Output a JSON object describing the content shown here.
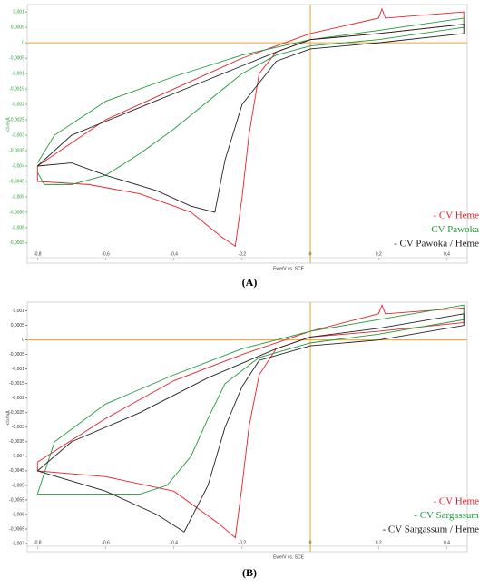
{
  "chart_data": [
    {
      "type": "line",
      "label": "(A)",
      "x_label": "Ewe/V vs. SCE",
      "y_label": "<I>/mA",
      "axis_color": "#2a9a3a",
      "zero_line_color": "#f0a030",
      "xlim": [
        -0.83,
        0.46
      ],
      "ylim": [
        -0.00715,
        0.00124
      ],
      "xticks": [
        {
          "value": -0.8,
          "label": "-0,8"
        },
        {
          "value": -0.6,
          "label": "-0,6"
        },
        {
          "value": -0.4,
          "label": "-0,4"
        },
        {
          "value": -0.2,
          "label": "-0,2"
        },
        0,
        {
          "value": 0.2,
          "label": "0,2"
        },
        {
          "value": 0.4,
          "label": "0,4"
        }
      ],
      "yticks": [
        {
          "value": 0.001,
          "label": "0,001"
        },
        {
          "value": 0.0005,
          "label": "0,0005"
        },
        0,
        {
          "value": -0.0005,
          "label": "-0,0005"
        },
        {
          "value": -0.001,
          "label": "-0,001"
        },
        {
          "value": -0.0015,
          "label": "-0,0015"
        },
        {
          "value": -0.002,
          "label": "-0,002"
        },
        {
          "value": -0.0025,
          "label": "-0,0025"
        },
        {
          "value": -0.003,
          "label": "-0,003"
        },
        {
          "value": -0.0035,
          "label": "-0,0035"
        },
        {
          "value": -0.004,
          "label": "-0,004"
        },
        {
          "value": -0.0045,
          "label": "-0,0045"
        },
        {
          "value": -0.005,
          "label": "-0,005"
        },
        {
          "value": -0.0055,
          "label": "-0,0055"
        },
        {
          "value": -0.006,
          "label": "-0,006"
        },
        {
          "value": -0.0065,
          "label": "-0,0065"
        }
      ],
      "series": [
        {
          "name": "- CV Heme",
          "color": "#e8202a",
          "x": [
            -0.8,
            -0.6,
            -0.4,
            -0.2,
            -0.1,
            0,
            0.2,
            0.21,
            0.22,
            0.45,
            0.45,
            0.2,
            0,
            -0.1,
            -0.15,
            -0.18,
            -0.2,
            -0.22,
            -0.26,
            -0.35,
            -0.5,
            -0.65,
            -0.8,
            -0.8
          ],
          "values": [
            -0.004,
            -0.0025,
            -0.0015,
            -0.0005,
            -0.0001,
            0.0003,
            0.0008,
            0.0011,
            0.0008,
            0.001,
            0.0006,
            0.0003,
            0.0001,
            -0.0003,
            -0.001,
            -0.003,
            -0.005,
            -0.0066,
            -0.0063,
            -0.0055,
            -0.0049,
            -0.0046,
            -0.0045,
            -0.004
          ]
        },
        {
          "name": "- CV Pawoka",
          "color": "#1f9a3a",
          "x": [
            -0.8,
            -0.75,
            -0.6,
            -0.4,
            -0.2,
            0,
            0.2,
            0.45,
            0.45,
            0.2,
            0,
            -0.1,
            -0.2,
            -0.3,
            -0.4,
            -0.5,
            -0.6,
            -0.7,
            -0.78,
            -0.8
          ],
          "values": [
            -0.0039,
            -0.003,
            -0.0019,
            -0.0011,
            -0.0004,
            0.0001,
            0.0004,
            0.0008,
            0.0005,
            0.0001,
            -0.0001,
            -0.0004,
            -0.001,
            -0.0019,
            -0.0028,
            -0.0036,
            -0.0043,
            -0.0046,
            -0.0046,
            -0.0042
          ]
        },
        {
          "name": "- CV Pawoka / Heme",
          "color": "#222222",
          "x": [
            -0.8,
            -0.7,
            -0.5,
            -0.3,
            -0.1,
            0,
            0.2,
            0.45,
            0.45,
            0.2,
            0,
            -0.1,
            -0.2,
            -0.25,
            -0.28,
            -0.35,
            -0.45,
            -0.6,
            -0.7,
            -0.8
          ],
          "values": [
            -0.004,
            -0.003,
            -0.0021,
            -0.0012,
            -0.0003,
            0.0001,
            0.0003,
            0.0006,
            0.0003,
            0,
            -0.0002,
            -0.0006,
            -0.002,
            -0.0038,
            -0.0055,
            -0.0053,
            -0.0048,
            -0.0043,
            -0.0039,
            -0.004
          ]
        }
      ]
    },
    {
      "type": "line",
      "label": "(B)",
      "x_label": "Ewe/V vs. SCE",
      "y_label": "<I>/mA",
      "axis_color": "#333333",
      "zero_line_color": "#f0a030",
      "xlim": [
        -0.83,
        0.46
      ],
      "ylim": [
        -0.00728,
        0.0013
      ],
      "xticks": [
        {
          "value": -0.8,
          "label": "-0,8"
        },
        {
          "value": -0.6,
          "label": "-0,6"
        },
        {
          "value": -0.4,
          "label": "-0,4"
        },
        {
          "value": -0.2,
          "label": "-0,2"
        },
        0,
        {
          "value": 0.2,
          "label": "0,2"
        },
        {
          "value": 0.4,
          "label": "0,4"
        }
      ],
      "yticks": [
        {
          "value": 0.001,
          "label": "0,001"
        },
        {
          "value": 0.0005,
          "label": "0,0005"
        },
        0,
        {
          "value": -0.0005,
          "label": "-0,0005"
        },
        {
          "value": -0.001,
          "label": "-0,001"
        },
        {
          "value": -0.0015,
          "label": "-0,0015"
        },
        {
          "value": -0.002,
          "label": "-0,002"
        },
        {
          "value": -0.0025,
          "label": "-0,0025"
        },
        {
          "value": -0.003,
          "label": "-0,003"
        },
        {
          "value": -0.0035,
          "label": "-0,0035"
        },
        {
          "value": -0.004,
          "label": "-0,004"
        },
        {
          "value": -0.0045,
          "label": "-0,0045"
        },
        {
          "value": -0.005,
          "label": "-0,005"
        },
        {
          "value": -0.0055,
          "label": "-0,0055"
        },
        {
          "value": -0.006,
          "label": "-0,006"
        },
        {
          "value": -0.0065,
          "label": "-0,0065"
        },
        {
          "value": -0.007,
          "label": "-0,007"
        }
      ],
      "series": [
        {
          "name": "- CV Heme",
          "color": "#e8202a",
          "x": [
            -0.8,
            -0.6,
            -0.4,
            -0.2,
            0,
            0.2,
            0.21,
            0.22,
            0.45,
            0.45,
            0.2,
            0,
            -0.1,
            -0.15,
            -0.18,
            -0.2,
            -0.22,
            -0.27,
            -0.4,
            -0.6,
            -0.8,
            -0.8
          ],
          "values": [
            -0.0042,
            -0.0027,
            -0.0014,
            -0.0005,
            0.0003,
            0.0009,
            0.0012,
            0.0009,
            0.0011,
            0.0006,
            0.0003,
            0.0001,
            -0.0003,
            -0.0012,
            -0.003,
            -0.005,
            -0.0068,
            -0.0063,
            -0.0052,
            -0.0047,
            -0.0045,
            -0.0042
          ]
        },
        {
          "name": "- CV Sargassum",
          "color": "#1f9a3a",
          "x": [
            -0.8,
            -0.75,
            -0.6,
            -0.4,
            -0.2,
            0,
            0.2,
            0.45,
            0.45,
            0.2,
            0,
            -0.15,
            -0.25,
            -0.3,
            -0.35,
            -0.42,
            -0.5,
            -0.7,
            -0.8
          ],
          "values": [
            -0.0053,
            -0.0035,
            -0.0022,
            -0.0012,
            -0.0003,
            0.0003,
            0.0007,
            0.0012,
            0.0007,
            0.0002,
            -0.0001,
            -0.0006,
            -0.0015,
            -0.0027,
            -0.004,
            -0.005,
            -0.0053,
            -0.0053,
            -0.0053
          ]
        },
        {
          "name": "- CV Sargassum / Heme",
          "color": "#222222",
          "x": [
            -0.8,
            -0.7,
            -0.5,
            -0.3,
            -0.1,
            0,
            0.2,
            0.45,
            0.45,
            0.2,
            0,
            -0.15,
            -0.2,
            -0.25,
            -0.3,
            -0.37,
            -0.45,
            -0.6,
            -0.8
          ],
          "values": [
            -0.0045,
            -0.0035,
            -0.0025,
            -0.0013,
            -0.0003,
            0.0001,
            0.0004,
            0.0009,
            0.0005,
            0,
            -0.0002,
            -0.0007,
            -0.0016,
            -0.003,
            -0.005,
            -0.0066,
            -0.006,
            -0.0052,
            -0.0045
          ]
        }
      ]
    }
  ]
}
